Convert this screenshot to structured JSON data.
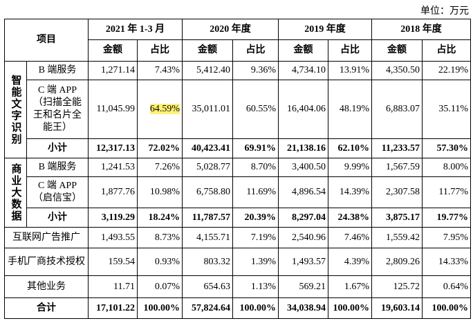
{
  "unit": "单位：万元",
  "header": {
    "item": "项目",
    "periods": [
      "2021 年 1-3 月",
      "2020 年度",
      "2019 年度",
      "2018 年度"
    ],
    "subheaders": [
      "金额",
      "占比",
      "金额",
      "占比",
      "金额",
      "占比",
      "金额",
      "占比"
    ]
  },
  "groups": [
    {
      "label": "智能文字识别",
      "rows": [
        {
          "item": "B 端服务",
          "values": [
            "1,271.14",
            "7.43%",
            "5,412.40",
            "9.36%",
            "4,734.10",
            "13.91%",
            "4,350.50",
            "22.19%"
          ]
        },
        {
          "item": "C 端 APP（扫描全能王和名片全能王）",
          "values": [
            "11,045.99",
            "64.59%",
            "35,011.01",
            "60.55%",
            "16,404.06",
            "48.19%",
            "6,883.07",
            "35.11%"
          ],
          "highlight": 1
        },
        {
          "item": "小计",
          "values": [
            "12,317.13",
            "72.02%",
            "40,423.41",
            "69.91%",
            "21,138.16",
            "62.10%",
            "11,233.57",
            "57.30%"
          ],
          "bold": true
        }
      ]
    },
    {
      "label": "商业大数据",
      "rows": [
        {
          "item": "B 端服务",
          "values": [
            "1,241.53",
            "7.26%",
            "5,028.77",
            "8.70%",
            "3,400.50",
            "9.99%",
            "1,567.59",
            "8.00%"
          ]
        },
        {
          "item": "C 端 APP（启信宝）",
          "values": [
            "1,877.76",
            "10.98%",
            "6,758.80",
            "11.69%",
            "4,896.54",
            "14.39%",
            "2,307.58",
            "11.77%"
          ]
        },
        {
          "item": "小计",
          "values": [
            "3,119.29",
            "18.24%",
            "11,787.57",
            "20.39%",
            "8,297.04",
            "24.38%",
            "3,875.17",
            "19.77%"
          ],
          "bold": true
        }
      ]
    }
  ],
  "rows": [
    {
      "item": "互联网广告推广",
      "values": [
        "1,493.55",
        "8.73%",
        "4,155.71",
        "7.19%",
        "2,540.96",
        "7.46%",
        "1,559.42",
        "7.95%"
      ]
    },
    {
      "item": "手机厂商技术授权",
      "values": [
        "159.54",
        "0.93%",
        "803.32",
        "1.39%",
        "1,493.57",
        "4.39%",
        "2,809.26",
        "14.33%"
      ]
    },
    {
      "item": "其他业务",
      "values": [
        "11.71",
        "0.07%",
        "654.63",
        "1.13%",
        "569.21",
        "1.67%",
        "125.72",
        "0.64%"
      ]
    },
    {
      "item": "合计",
      "values": [
        "17,101.22",
        "100.00%",
        "57,824.64",
        "100.00%",
        "34,038.94",
        "100.00%",
        "19,603.14",
        "100.00%"
      ],
      "bold": true
    }
  ]
}
